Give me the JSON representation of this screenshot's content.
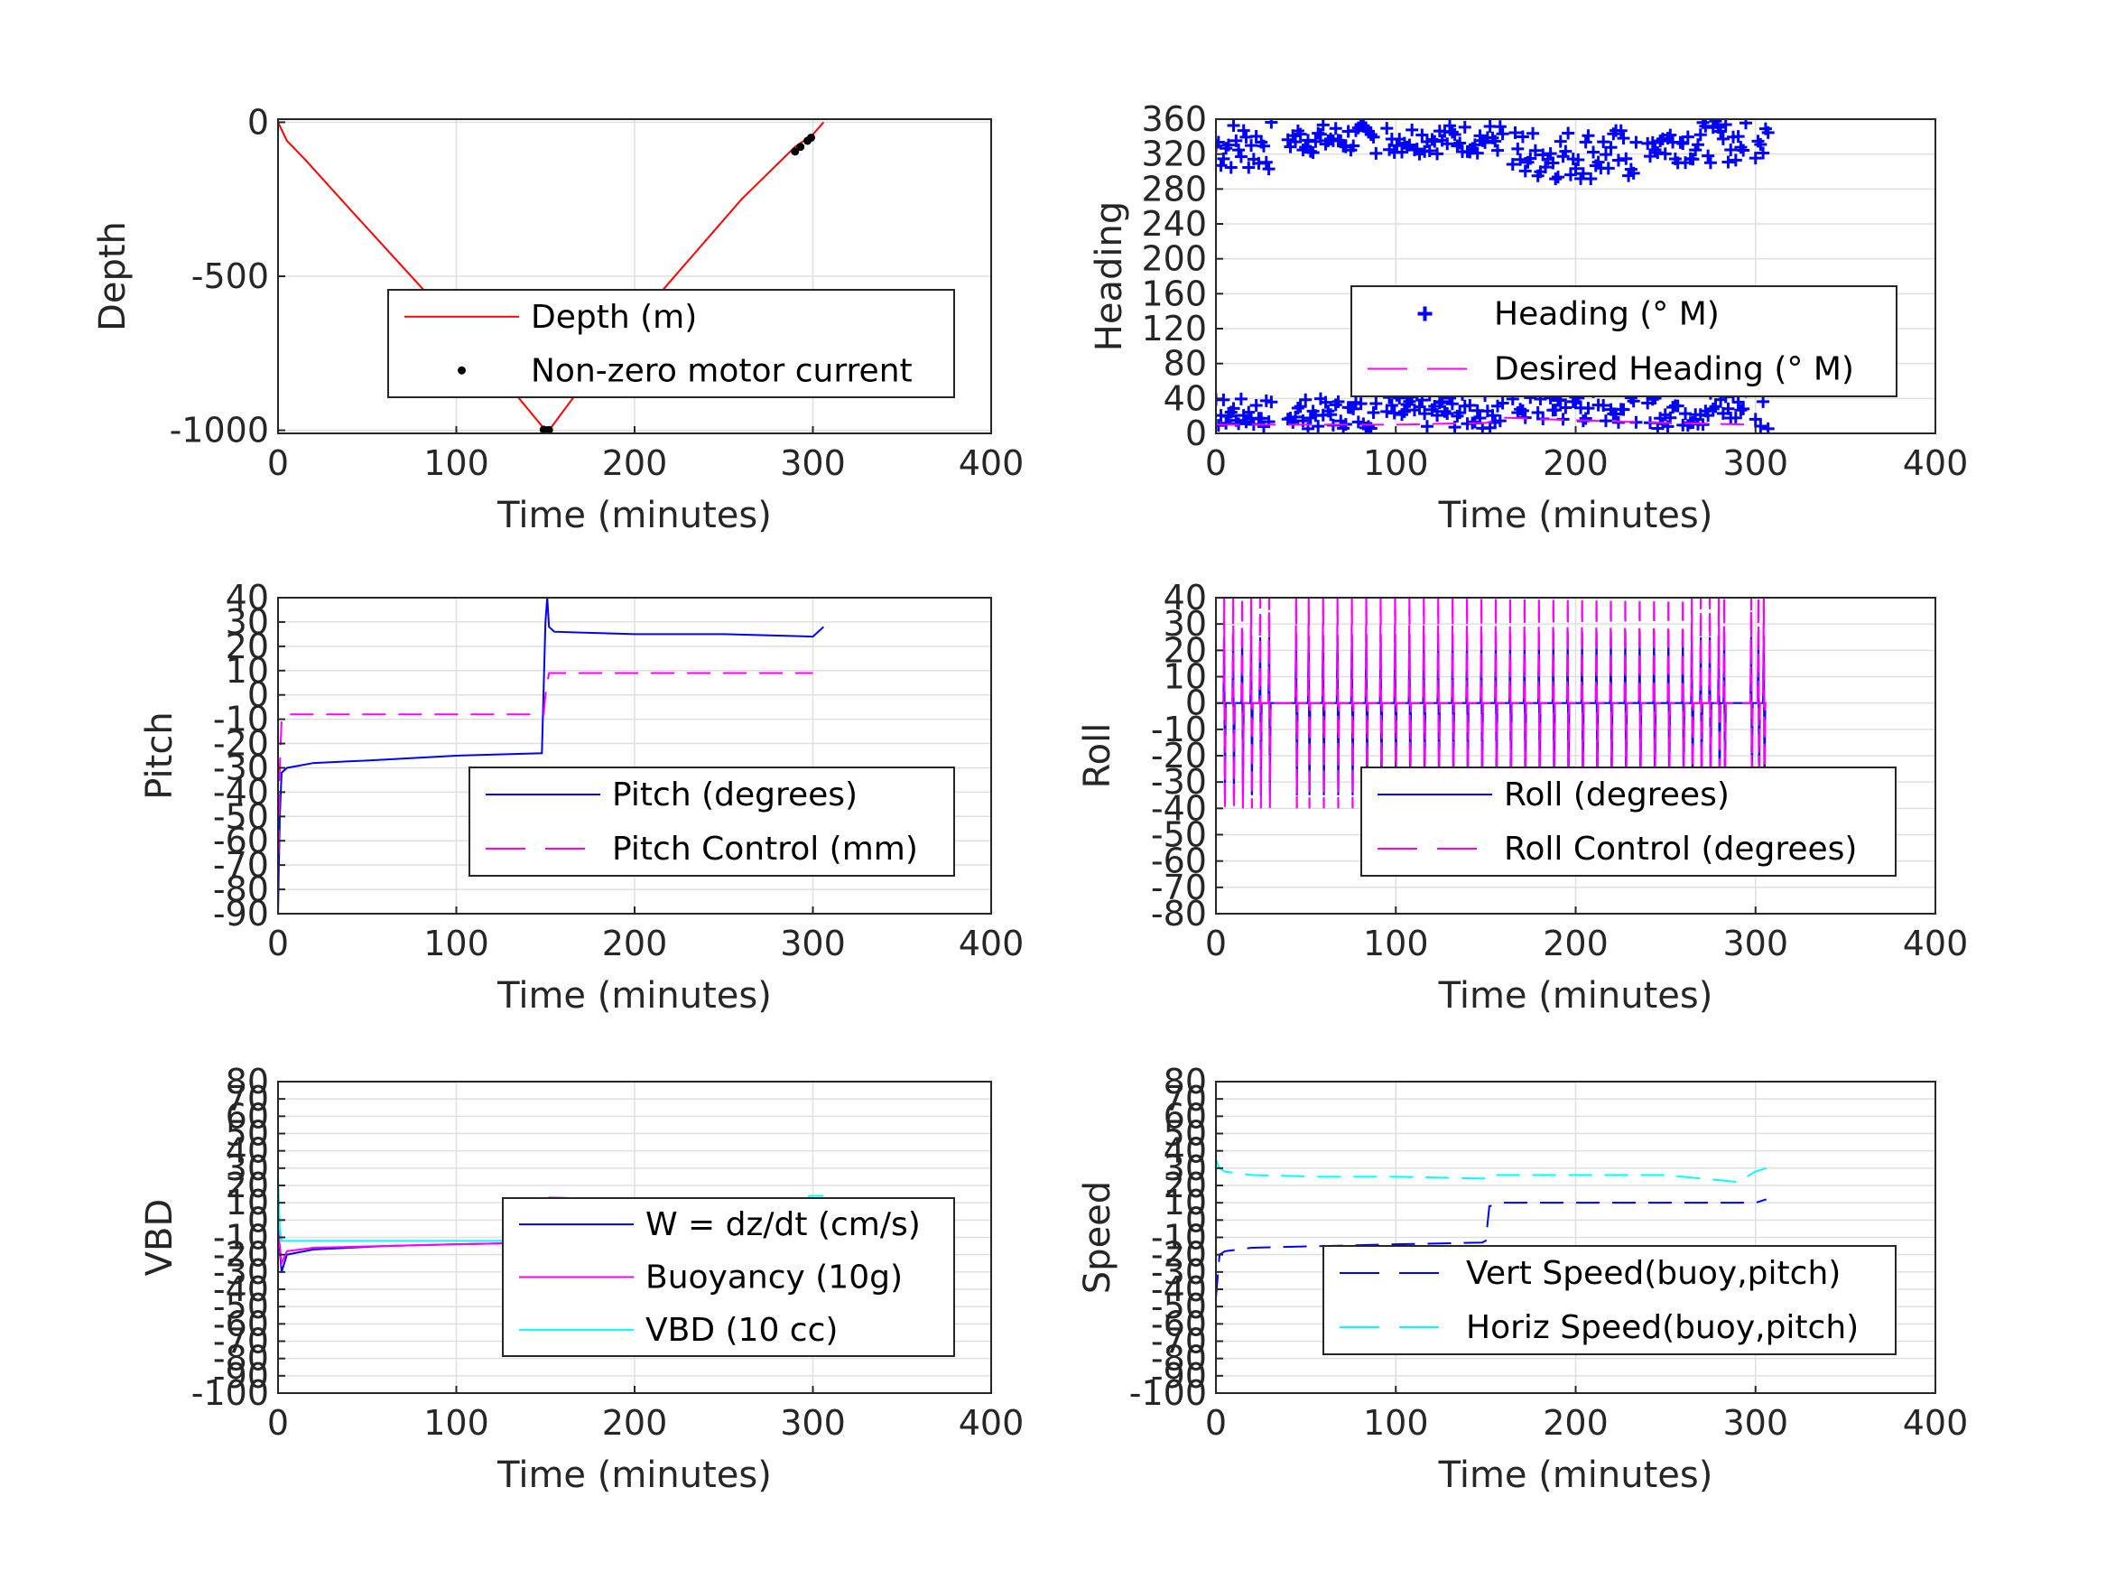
{
  "chart_data": [
    {
      "id": "depth",
      "type": "line",
      "xlabel": "Time (minutes)",
      "ylabel": "Depth",
      "xlim": [
        0,
        400
      ],
      "ylim": [
        -1010,
        10
      ],
      "xticks": [
        0,
        100,
        200,
        300,
        400
      ],
      "yticks": [
        0,
        -500,
        -1000
      ],
      "grid": true,
      "legend_position": "center",
      "series": [
        {
          "name": "Depth (m)",
          "style": "solid",
          "color": "#ff0000",
          "x": [
            0,
            5,
            15,
            40,
            70,
            100,
            130,
            150,
            152,
            170,
            200,
            230,
            260,
            290,
            300,
            306
          ],
          "y": [
            0,
            -60,
            -120,
            -280,
            -470,
            -660,
            -860,
            -1000,
            -1000,
            -860,
            -650,
            -450,
            -250,
            -80,
            -40,
            0
          ]
        },
        {
          "name": "Non-zero motor current",
          "style": "marker-dot",
          "color": "#000000",
          "x": [
            149,
            151,
            152,
            290,
            293,
            297,
            299
          ],
          "y": [
            -998,
            -1000,
            -999,
            -95,
            -80,
            -60,
            -50
          ]
        }
      ]
    },
    {
      "id": "heading",
      "type": "scatter",
      "xlabel": "Time (minutes)",
      "ylabel": "Heading",
      "xlim": [
        0,
        400
      ],
      "ylim": [
        0,
        360
      ],
      "xticks": [
        0,
        100,
        200,
        300,
        400
      ],
      "yticks": [
        0,
        40,
        80,
        120,
        160,
        200,
        240,
        280,
        320,
        360
      ],
      "grid": true,
      "legend_position": "center-right",
      "series": [
        {
          "name": "Heading (° M)",
          "style": "marker-plus",
          "color": "#0000ff",
          "x_ranges": [
            [
              0,
              32
            ],
            [
              40,
              90
            ],
            [
              95,
              160
            ],
            [
              165,
              235
            ],
            [
              240,
              295
            ],
            [
              300,
              308
            ]
          ],
          "upper_band": [
            [
              0,
              300,
              360
            ],
            [
              40,
              320,
              355
            ],
            [
              95,
              320,
              355
            ],
            [
              165,
              290,
              350
            ],
            [
              240,
              310,
              358
            ],
            [
              300,
              310,
              360
            ]
          ],
          "lower_band": [
            [
              0,
              5,
              40
            ],
            [
              40,
              5,
              40
            ],
            [
              95,
              5,
              45
            ],
            [
              165,
              10,
              60
            ],
            [
              240,
              5,
              55
            ],
            [
              300,
              0,
              80
            ]
          ]
        },
        {
          "name": "Desired Heading (° M)",
          "style": "dashed",
          "color": "#ff00ff",
          "x": [
            0,
            100,
            150,
            160,
            200,
            250,
            300
          ],
          "y": [
            10,
            10,
            12,
            18,
            15,
            12,
            10
          ]
        }
      ]
    },
    {
      "id": "pitch",
      "type": "line",
      "xlabel": "Time (minutes)",
      "ylabel": "Pitch",
      "xlim": [
        0,
        400
      ],
      "ylim": [
        -90,
        40
      ],
      "xticks": [
        0,
        100,
        200,
        300,
        400
      ],
      "yticks": [
        40,
        30,
        20,
        10,
        0,
        -10,
        -20,
        -30,
        -40,
        -50,
        -60,
        -70,
        -80,
        -90
      ],
      "grid": true,
      "legend_position": "center-right",
      "series": [
        {
          "name": "Pitch (degrees)",
          "style": "solid",
          "color": "#0000ff",
          "x": [
            0,
            1,
            2,
            5,
            20,
            50,
            100,
            148,
            150,
            151,
            152,
            155,
            200,
            250,
            300,
            306
          ],
          "y": [
            -90,
            -50,
            -32,
            -30,
            -28,
            -27,
            -25,
            -24,
            30,
            40,
            28,
            26,
            25,
            25,
            24,
            28
          ]
        },
        {
          "name": "Pitch Control (mm)",
          "style": "dashed",
          "color": "#ff00ff",
          "x": [
            0,
            1,
            2,
            5,
            100,
            149,
            150,
            152,
            200,
            300
          ],
          "y": [
            -80,
            -30,
            -10,
            -8,
            -8,
            -8,
            0,
            9,
            9,
            9
          ]
        }
      ]
    },
    {
      "id": "roll",
      "type": "line",
      "xlabel": "Time (minutes)",
      "ylabel": "Roll",
      "xlim": [
        0,
        400
      ],
      "ylim": [
        -80,
        40
      ],
      "xticks": [
        0,
        100,
        200,
        300,
        400
      ],
      "yticks": [
        40,
        30,
        20,
        10,
        0,
        -10,
        -20,
        -30,
        -40,
        -50,
        -60,
        -70,
        -80
      ],
      "grid": true,
      "legend_position": "center-right",
      "series": [
        {
          "name": "Roll (degrees)",
          "style": "solid",
          "color": "#0000ff",
          "spike_times": [
            5,
            10,
            15,
            20,
            25,
            30,
            45,
            52,
            60,
            68,
            76,
            84,
            92,
            100,
            108,
            116,
            124,
            132,
            140,
            148,
            156,
            164,
            172,
            180,
            188,
            196,
            204,
            212,
            220,
            228,
            236,
            244,
            252,
            260,
            265,
            270,
            275,
            280,
            283,
            298,
            302,
            305
          ],
          "baseline": 0,
          "spike_high": 25,
          "spike_low": -35
        },
        {
          "name": "Roll Control (degrees)",
          "style": "dashed",
          "color": "#ff00ff",
          "spike_times": [
            5,
            10,
            15,
            20,
            25,
            30,
            45,
            52,
            60,
            68,
            76,
            84,
            92,
            100,
            108,
            116,
            124,
            132,
            140,
            148,
            156,
            164,
            172,
            180,
            188,
            196,
            204,
            212,
            220,
            228,
            236,
            244,
            252,
            260,
            265,
            270,
            275,
            280,
            283,
            298,
            302,
            305
          ],
          "baseline": 0,
          "spike_high": 40,
          "spike_low": -40
        }
      ]
    },
    {
      "id": "vbd",
      "type": "line",
      "xlabel": "Time (minutes)",
      "ylabel": "VBD",
      "xlim": [
        0,
        400
      ],
      "ylim": [
        -100,
        80
      ],
      "xticks": [
        0,
        100,
        200,
        300,
        400
      ],
      "yticks": [
        80,
        70,
        60,
        50,
        40,
        30,
        20,
        10,
        0,
        -10,
        -20,
        -30,
        -40,
        -50,
        -60,
        -70,
        -80,
        -90,
        -100
      ],
      "grid": true,
      "legend_position": "center-right",
      "series": [
        {
          "name": "W = dz/dt (cm/s)",
          "style": "solid",
          "color": "#0000ff",
          "x": [
            0,
            2,
            5,
            20,
            60,
            100,
            148,
            150,
            152,
            160,
            200,
            250,
            300,
            306
          ],
          "y": [
            -5,
            -30,
            -20,
            -17,
            -15,
            -14,
            -13,
            -12,
            12,
            11,
            10,
            10,
            10,
            11
          ]
        },
        {
          "name": "Buoyancy (10g)",
          "style": "solid",
          "color": "#ff00ff",
          "x": [
            0,
            2,
            5,
            20,
            100,
            148,
            150,
            152,
            200,
            300,
            306
          ],
          "y": [
            -5,
            -25,
            -18,
            -16,
            -14,
            -13,
            10,
            13,
            12,
            12,
            12
          ]
        },
        {
          "name": "VBD (10 cc)",
          "style": "solid",
          "color": "#00ffff",
          "x": [
            0,
            1,
            2,
            5,
            100,
            148,
            150,
            152,
            200,
            295,
            298,
            306
          ],
          "y": [
            25,
            -5,
            -12,
            -12,
            -12,
            -12,
            8,
            8,
            8,
            8,
            14,
            14
          ]
        }
      ]
    },
    {
      "id": "speed",
      "type": "line",
      "xlabel": "Time (minutes)",
      "ylabel": "Speed",
      "xlim": [
        0,
        400
      ],
      "ylim": [
        -100,
        80
      ],
      "xticks": [
        0,
        100,
        200,
        300,
        400
      ],
      "yticks": [
        80,
        70,
        60,
        50,
        40,
        30,
        20,
        10,
        0,
        -10,
        -20,
        -30,
        -40,
        -50,
        -60,
        -70,
        -80,
        -90,
        -100
      ],
      "grid": true,
      "legend_position": "center-right",
      "series": [
        {
          "name": "Vert Speed(buoy,pitch)",
          "style": "dashed",
          "color": "#0000ff",
          "x": [
            0,
            2,
            5,
            20,
            60,
            100,
            148,
            150,
            152,
            160,
            200,
            250,
            300,
            306
          ],
          "y": [
            -45,
            -20,
            -18,
            -16,
            -15,
            -14,
            -13,
            -12,
            8,
            10,
            10,
            10,
            10,
            12
          ]
        },
        {
          "name": "Horiz Speed(buoy,pitch)",
          "style": "dashed",
          "color": "#00ffff",
          "x": [
            0,
            2,
            5,
            20,
            60,
            100,
            150,
            152,
            200,
            250,
            290,
            300,
            306
          ],
          "y": [
            35,
            30,
            28,
            26,
            25,
            25,
            24,
            26,
            26,
            26,
            22,
            28,
            30
          ]
        }
      ]
    }
  ]
}
